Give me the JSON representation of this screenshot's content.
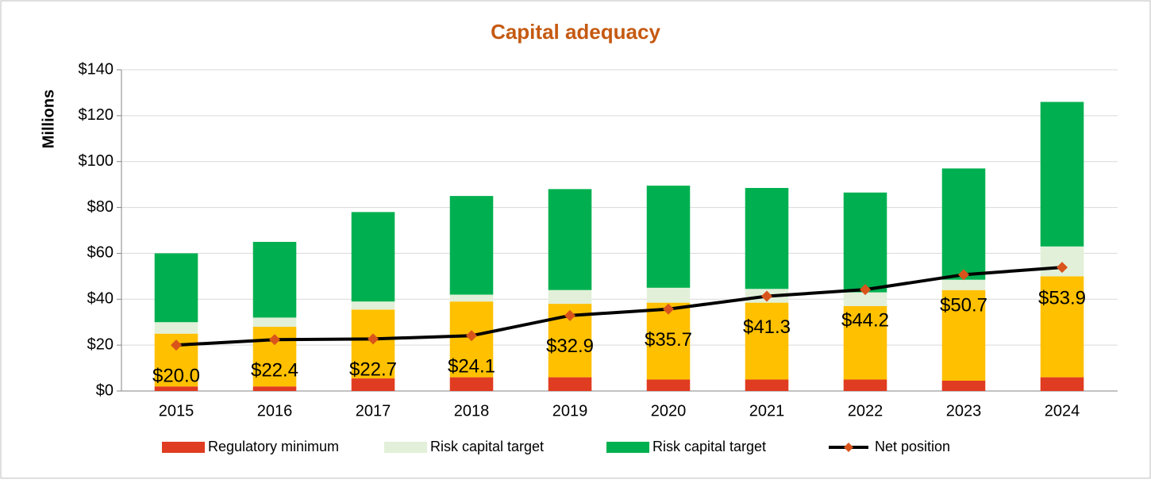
{
  "chart_data": {
    "type": "bar",
    "title": "Capital adequacy",
    "y_label": "Millions",
    "categories": [
      "2015",
      "2016",
      "2017",
      "2018",
      "2019",
      "2020",
      "2021",
      "2022",
      "2023",
      "2024"
    ],
    "series": [
      {
        "name": "Regulatory minimum",
        "color": "#e03c21",
        "values": [
          2,
          2,
          5.5,
          6,
          6,
          5,
          5,
          5,
          4.5,
          6
        ]
      },
      {
        "color": "#ffc000",
        "values": [
          23,
          26,
          30,
          33,
          32,
          33.5,
          33.5,
          32,
          39.5,
          44
        ]
      },
      {
        "name": "Risk capital target",
        "color": "#e2f0d9",
        "values": [
          5,
          4,
          3.5,
          3,
          6,
          6.5,
          6,
          6,
          4.5,
          13
        ]
      },
      {
        "name": "Risk capital target",
        "color": "#00b050",
        "values": [
          30,
          33,
          39,
          43,
          44,
          44.5,
          44,
          43.5,
          48.5,
          63
        ]
      },
      {
        "name": "Net position",
        "type": "line",
        "color": "#000000",
        "marker_color": "#d9541b",
        "values": [
          20.0,
          22.4,
          22.7,
          24.1,
          32.9,
          35.7,
          41.3,
          44.2,
          50.7,
          53.9
        ],
        "value_labels": [
          "$20.0",
          "$22.4",
          "$22.7",
          "$24.1",
          "$32.9",
          "$35.7",
          "$41.3",
          "$44.2",
          "$50.7",
          "$53.9"
        ]
      }
    ],
    "ylim": [
      0,
      140
    ],
    "yticks": [
      {
        "value": 0,
        "label": "$0"
      },
      {
        "value": 20,
        "label": "$20"
      },
      {
        "value": 40,
        "label": "$40"
      },
      {
        "value": 60,
        "label": "$60"
      },
      {
        "value": 80,
        "label": "$80"
      },
      {
        "value": 100,
        "label": "$100"
      },
      {
        "value": 120,
        "label": "$120"
      },
      {
        "value": 140,
        "label": "$140"
      }
    ],
    "grid": true,
    "legend": "bottom"
  }
}
